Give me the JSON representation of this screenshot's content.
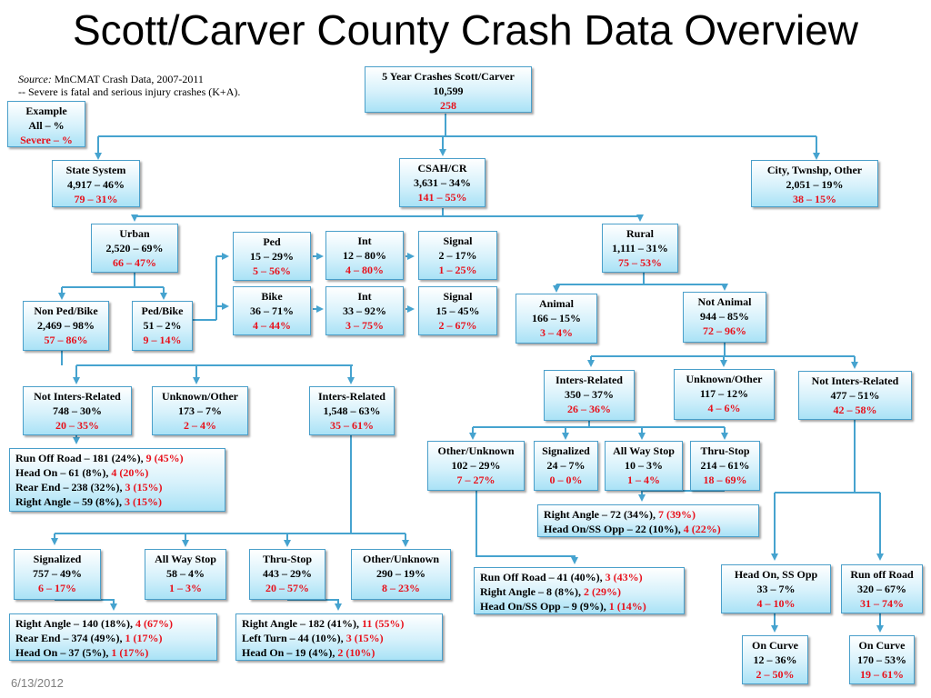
{
  "title": "Scott/Carver County Crash Data Overview",
  "source": {
    "label": "Source:",
    "text": " MnCMAT Crash Data, 2007-2011",
    "note": "-- Severe is fatal and serious injury crashes (K+A)."
  },
  "date": "6/13/2012",
  "colors": {
    "severe": "#e8111c",
    "line": "#46a3cf",
    "box_border": "#4a9fca"
  },
  "nodes": {
    "total": [
      "5 Year Crashes Scott/Carver",
      "10,599",
      "258"
    ],
    "example": [
      "Example",
      "All – %",
      "Severe – %"
    ],
    "state": [
      "State System",
      "4,917 – 46%",
      "79 – 31%"
    ],
    "csah": [
      "CSAH/CR",
      "3,631 – 34%",
      "141 – 55%"
    ],
    "city": [
      "City, Twnshp, Other",
      "2,051 – 19%",
      "38 – 15%"
    ],
    "urban": [
      "Urban",
      "2,520 – 69%",
      "66 – 47%"
    ],
    "ped": [
      "Ped",
      "15 – 29%",
      "5 – 56%"
    ],
    "ped_int": [
      "Int",
      "12 – 80%",
      "4 – 80%"
    ],
    "ped_signal": [
      "Signal",
      "2 – 17%",
      "1 – 25%"
    ],
    "bike": [
      "Bike",
      "36 – 71%",
      "4 – 44%"
    ],
    "bike_int": [
      "Int",
      "33 – 92%",
      "3 – 75%"
    ],
    "bike_signal": [
      "Signal",
      "15 – 45%",
      "2 – 67%"
    ],
    "rural": [
      "Rural",
      "1,111 – 31%",
      "75 – 53%"
    ],
    "nonped": [
      "Non Ped/Bike",
      "2,469 – 98%",
      "57 – 86%"
    ],
    "pedbike": [
      "Ped/Bike",
      "51 – 2%",
      "9 – 14%"
    ],
    "animal": [
      "Animal",
      "166 – 15%",
      "3 – 4%"
    ],
    "notanimal": [
      "Not Animal",
      "944 – 85%",
      "72 – 96%"
    ],
    "u_notinters": [
      "Not Inters-Related",
      "748 – 30%",
      "20 – 35%"
    ],
    "u_unknown": [
      "Unknown/Other",
      "173 – 7%",
      "2 – 4%"
    ],
    "u_inters": [
      "Inters-Related",
      "1,548 – 63%",
      "35 – 61%"
    ],
    "r_inters": [
      "Inters-Related",
      "350 – 37%",
      "26 – 36%"
    ],
    "r_unknown": [
      "Unknown/Other",
      "117 – 12%",
      "4 – 6%"
    ],
    "r_notinters": [
      "Not Inters-Related",
      "477 – 51%",
      "42 – 58%"
    ],
    "r_other": [
      "Other/Unknown",
      "102 – 29%",
      "7 – 27%"
    ],
    "r_signal": [
      "Signalized",
      "24 – 7%",
      "0 – 0%"
    ],
    "r_aws": [
      "All Way Stop",
      "10 – 3%",
      "1 – 4%"
    ],
    "r_thru": [
      "Thru-Stop",
      "214 – 61%",
      "18 – 69%"
    ],
    "u_signal": [
      "Signalized",
      "757 – 49%",
      "6 – 17%"
    ],
    "u_aws": [
      "All Way Stop",
      "58 – 4%",
      "1 – 3%"
    ],
    "u_thru": [
      "Thru-Stop",
      "443 – 29%",
      "20 – 57%"
    ],
    "u_other": [
      "Other/Unknown",
      "290 – 19%",
      "8 – 23%"
    ],
    "headon_opp": [
      "Head On, SS Opp",
      "33 – 7%",
      "4 – 10%"
    ],
    "runoff_road": [
      "Run off Road",
      "320 – 67%",
      "31 – 74%"
    ],
    "curve1": [
      "On Curve",
      "12 – 36%",
      "2 – 50%"
    ],
    "curve2": [
      "On Curve",
      "170 – 53%",
      "19 – 61%"
    ]
  },
  "lists": {
    "u_notinters_list": [
      {
        "text": "Run Off Road – 181 (24%), ",
        "severe": "9 (45%)"
      },
      {
        "text": "Head On – 61 (8%), ",
        "severe": "4 (20%)"
      },
      {
        "text": "Rear End – 238 (32%), ",
        "severe": "3 (15%)"
      },
      {
        "text": "Right Angle – 59 (8%), ",
        "severe": "3 (15%)"
      }
    ],
    "r_thru_list": [
      {
        "text": "Right Angle – 72 (34%), ",
        "severe": "7 (39%)"
      },
      {
        "text": "Head On/SS Opp – 22 (10%), ",
        "severe": "4 (22%)"
      }
    ],
    "r_other_list": [
      {
        "text": "Run Off Road – 41 (40%), ",
        "severe": "3 (43%)"
      },
      {
        "text": "Right Angle – 8 (8%), ",
        "severe": "2 (29%)"
      },
      {
        "text": "Head On/SS Opp – 9 (9%), ",
        "severe": "1 (14%)"
      }
    ],
    "u_signal_list": [
      {
        "text": "Right Angle – 140 (18%), ",
        "severe": "4 (67%)"
      },
      {
        "text": "Rear End – 374 (49%), ",
        "severe": "1 (17%)"
      },
      {
        "text": "Head On – 37 (5%), ",
        "severe": "1 (17%)"
      }
    ],
    "u_thru_list": [
      {
        "text": "Right Angle – 182 (41%), ",
        "severe": "11 (55%)"
      },
      {
        "text": "Left Turn – 44 (10%), ",
        "severe": "3 (15%)"
      },
      {
        "text": "Head On – 19 (4%), ",
        "severe": "2 (10%)"
      }
    ]
  }
}
